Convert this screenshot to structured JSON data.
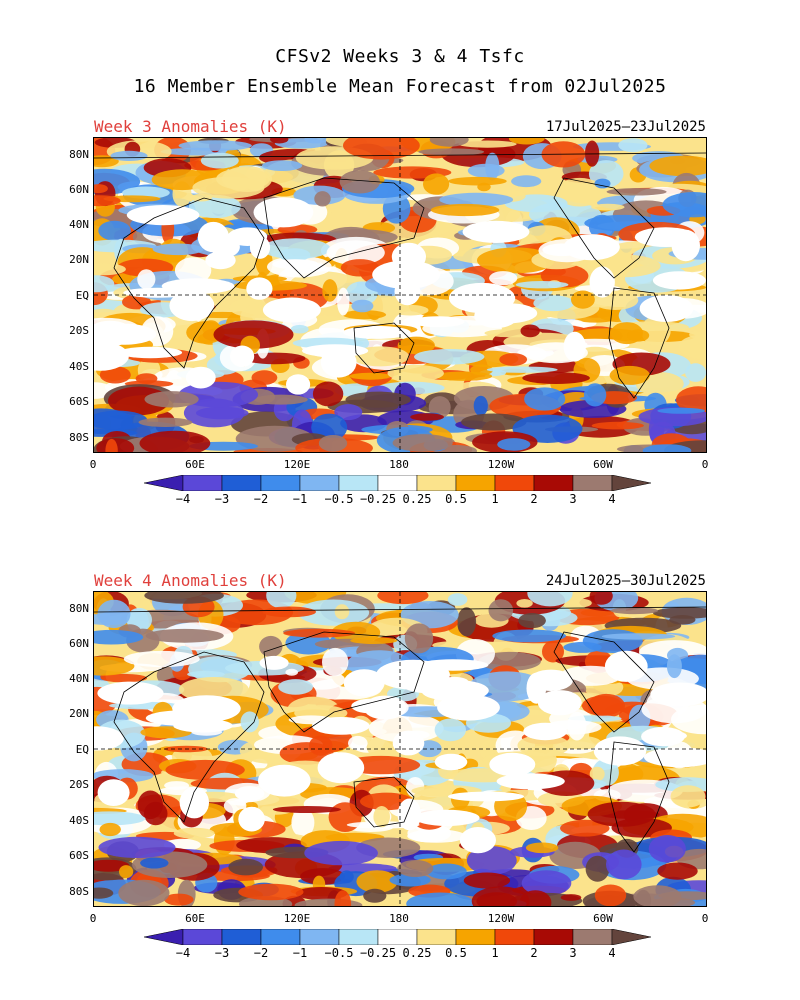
{
  "title": {
    "line1": "CFSv2 Weeks 3 & 4 Tsfc",
    "line2": "16 Member Ensemble Mean Forecast from 02Jul2025"
  },
  "panels": [
    {
      "label": "Week 3 Anomalies (K)",
      "dates": "17Jul2025–23Jul2025"
    },
    {
      "label": "Week 4 Anomalies (K)",
      "dates": "24Jul2025–30Jul2025"
    }
  ],
  "lat_ticks": [
    "80N",
    "60N",
    "40N",
    "20N",
    "EQ",
    "20S",
    "40S",
    "60S",
    "80S"
  ],
  "lon_ticks": [
    "0",
    "60E",
    "120E",
    "180",
    "120W",
    "60W",
    "0"
  ],
  "colorbar": {
    "labels": [
      "−4",
      "−3",
      "−2",
      "−1",
      "−0.5",
      "−0.25",
      "0.25",
      "0.5",
      "1",
      "2",
      "3",
      "4"
    ],
    "colors": [
      "#3a1fb0",
      "#5b48d8",
      "#1f5ed6",
      "#3f8cec",
      "#7fb6f2",
      "#b8e6f6",
      "#ffffff",
      "#fbe38c",
      "#f6a400",
      "#f0480a",
      "#a80a05",
      "#9c7a70",
      "#63443c"
    ]
  }
}
